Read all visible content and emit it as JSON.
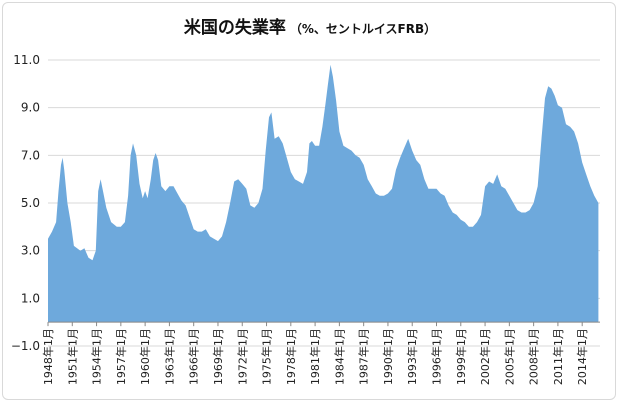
{
  "colors": {
    "area": "#6ea9dc",
    "grid": "#d9d9d9",
    "axis": "#888888"
  },
  "chart_data": {
    "type": "area",
    "title": "米国の失業率",
    "subtitle": "（%、セントルイスFRB）",
    "xlabel": "",
    "ylabel": "",
    "ylim": [
      -1.0,
      11.0
    ],
    "y_ticks": [
      "11.0",
      "9.0",
      "7.0",
      "5.0",
      "3.0",
      "1.0",
      "−1.0"
    ],
    "y_tick_values": [
      11,
      9,
      7,
      5,
      3,
      1,
      -1
    ],
    "x_range": [
      1948.0,
      2016.2
    ],
    "x_tick_labels": [
      "1948年1月",
      "1951年1月",
      "1954年1月",
      "1957年1月",
      "1960年1月",
      "1963年1月",
      "1966年1月",
      "1969年1月",
      "1972年1月",
      "1975年1月",
      "1978年1月",
      "1981年1月",
      "1984年1月",
      "1987年1月",
      "1990年1月",
      "1993年1月",
      "1996年1月",
      "1999年1月",
      "2002年1月",
      "2005年1月",
      "2008年1月",
      "2011年1月",
      "2014年1月"
    ],
    "x_tick_values": [
      1948,
      1951,
      1954,
      1957,
      1960,
      1963,
      1966,
      1969,
      1972,
      1975,
      1978,
      1981,
      1984,
      1987,
      1990,
      1993,
      1996,
      1999,
      2002,
      2005,
      2008,
      2011,
      2014
    ],
    "grid": "horizontal",
    "legend": "none",
    "series": [
      {
        "x": [
          1948.0,
          1948.5,
          1949.0,
          1949.3,
          1949.6,
          1949.8,
          1950.0,
          1950.4,
          1950.8,
          1951.2,
          1951.6,
          1952.0,
          1952.5,
          1953.0,
          1953.5,
          1953.9,
          1954.2,
          1954.5,
          1954.8,
          1955.2,
          1955.8,
          1956.5,
          1957.0,
          1957.5,
          1957.9,
          1958.2,
          1958.5,
          1958.9,
          1959.3,
          1959.7,
          1960.0,
          1960.3,
          1960.7,
          1961.0,
          1961.3,
          1961.6,
          1962.0,
          1962.5,
          1963.0,
          1963.5,
          1964.0,
          1964.5,
          1965.0,
          1965.5,
          1966.0,
          1966.5,
          1967.0,
          1967.5,
          1968.0,
          1968.5,
          1969.0,
          1969.5,
          1970.0,
          1970.5,
          1971.0,
          1971.5,
          1972.0,
          1972.5,
          1973.0,
          1973.5,
          1974.0,
          1974.5,
          1974.9,
          1975.3,
          1975.6,
          1976.0,
          1976.5,
          1977.0,
          1977.5,
          1978.0,
          1978.5,
          1979.0,
          1979.5,
          1980.0,
          1980.3,
          1980.6,
          1981.0,
          1981.5,
          1981.9,
          1982.3,
          1982.6,
          1982.9,
          1983.2,
          1983.6,
          1984.0,
          1984.5,
          1985.0,
          1985.5,
          1986.0,
          1986.5,
          1987.0,
          1987.5,
          1988.0,
          1988.5,
          1989.0,
          1989.5,
          1990.0,
          1990.5,
          1991.0,
          1991.5,
          1992.0,
          1992.5,
          1993.0,
          1993.5,
          1994.0,
          1994.5,
          1995.0,
          1995.5,
          1996.0,
          1996.5,
          1997.0,
          1997.5,
          1998.0,
          1998.5,
          1999.0,
          1999.5,
          2000.0,
          2000.5,
          2001.0,
          2001.5,
          2002.0,
          2002.5,
          2003.0,
          2003.5,
          2004.0,
          2004.5,
          2005.0,
          2005.5,
          2006.0,
          2006.5,
          2007.0,
          2007.5,
          2008.0,
          2008.5,
          2009.0,
          2009.4,
          2009.8,
          2010.2,
          2010.6,
          2011.0,
          2011.5,
          2012.0,
          2012.5,
          2013.0,
          2013.5,
          2014.0,
          2014.5,
          2015.0,
          2015.5,
          2016.0
        ],
        "y": [
          3.5,
          3.8,
          4.2,
          5.5,
          6.6,
          6.9,
          6.4,
          5.0,
          4.2,
          3.2,
          3.1,
          3.0,
          3.1,
          2.7,
          2.6,
          3.0,
          5.5,
          6.0,
          5.5,
          4.8,
          4.2,
          4.0,
          4.0,
          4.2,
          5.3,
          7.0,
          7.5,
          7.0,
          5.8,
          5.2,
          5.5,
          5.2,
          6.0,
          6.8,
          7.1,
          6.8,
          5.7,
          5.5,
          5.7,
          5.7,
          5.4,
          5.1,
          4.9,
          4.4,
          3.9,
          3.8,
          3.8,
          3.9,
          3.6,
          3.5,
          3.4,
          3.6,
          4.2,
          5.0,
          5.9,
          6.0,
          5.8,
          5.6,
          4.9,
          4.8,
          5.0,
          5.6,
          7.2,
          8.6,
          8.8,
          7.7,
          7.8,
          7.5,
          6.9,
          6.3,
          6.0,
          5.9,
          5.8,
          6.3,
          7.5,
          7.6,
          7.4,
          7.4,
          8.2,
          9.2,
          10.0,
          10.8,
          10.3,
          9.3,
          8.0,
          7.4,
          7.3,
          7.2,
          7.0,
          6.9,
          6.6,
          6.0,
          5.7,
          5.4,
          5.3,
          5.3,
          5.4,
          5.6,
          6.4,
          6.9,
          7.3,
          7.7,
          7.2,
          6.8,
          6.6,
          6.0,
          5.6,
          5.6,
          5.6,
          5.4,
          5.3,
          4.9,
          4.6,
          4.5,
          4.3,
          4.2,
          4.0,
          4.0,
          4.2,
          4.5,
          5.7,
          5.9,
          5.8,
          6.2,
          5.7,
          5.6,
          5.3,
          5.0,
          4.7,
          4.6,
          4.6,
          4.7,
          5.0,
          5.7,
          7.8,
          9.4,
          9.9,
          9.8,
          9.5,
          9.1,
          9.0,
          8.3,
          8.2,
          8.0,
          7.5,
          6.7,
          6.2,
          5.7,
          5.3,
          5.0
        ]
      }
    ]
  }
}
